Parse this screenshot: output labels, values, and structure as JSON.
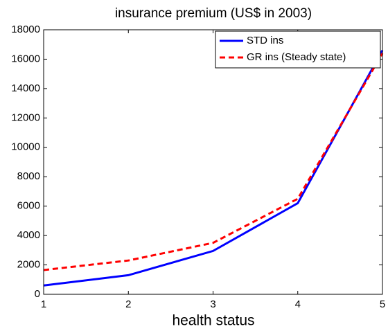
{
  "chart_data": {
    "type": "line",
    "title": "insurance premium (US$ in 2003)",
    "x_label": "health status",
    "x": [
      1,
      2,
      3,
      4,
      5
    ],
    "series": [
      {
        "name": "STD ins",
        "color": "#0000ff",
        "dash": "solid",
        "values": [
          600,
          1300,
          2950,
          6200,
          16600
        ]
      },
      {
        "name": "GR ins (Steady state)",
        "color": "#ff0000",
        "dash": "dashed",
        "values": [
          1650,
          2300,
          3500,
          6500,
          16400
        ]
      }
    ],
    "xlim": [
      1,
      5
    ],
    "xticks": [
      1,
      2,
      3,
      4,
      5
    ],
    "ylim": [
      0,
      18000
    ],
    "yticks": [
      0,
      2000,
      4000,
      6000,
      8000,
      10000,
      12000,
      14000,
      16000,
      18000
    ],
    "grid": false,
    "legend": "northeast"
  }
}
